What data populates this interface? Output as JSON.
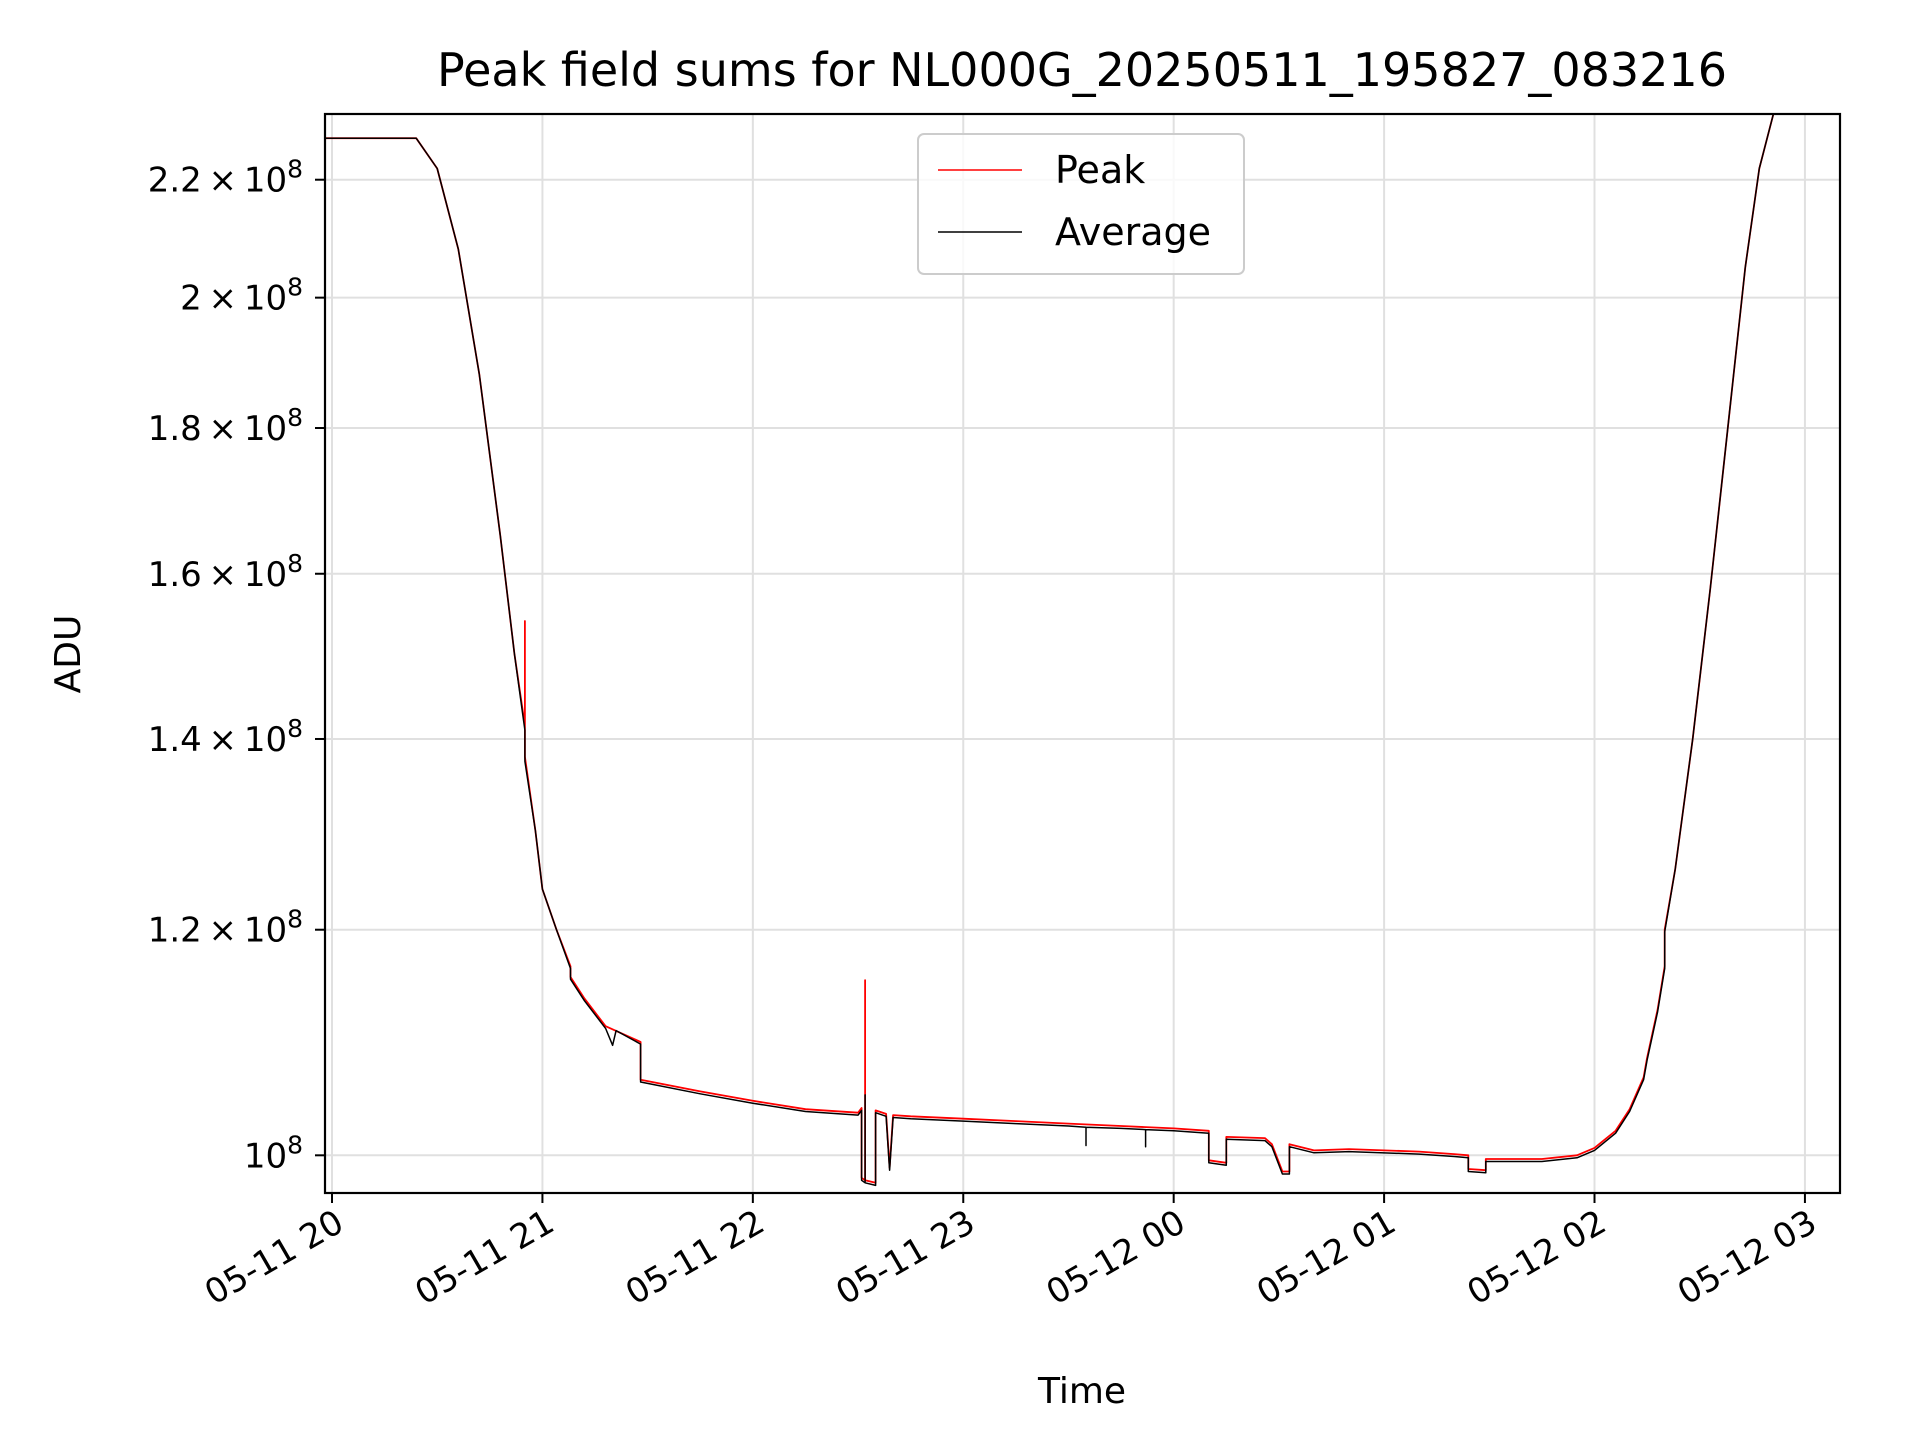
{
  "chart_data": {
    "type": "line",
    "title": "Peak field sums for NL000G_20250511_195827_083216",
    "xlabel": "Time",
    "ylabel": "ADU",
    "y_scale": "log",
    "xlim": [
      "2025-05-11 19:58",
      "2025-05-12 03:10"
    ],
    "ylim": [
      97000000,
      232000000
    ],
    "x_ticks": [
      "05-11 20",
      "05-11 21",
      "05-11 22",
      "05-11 23",
      "05-12 00",
      "05-12 01",
      "05-12 02",
      "05-12 03"
    ],
    "y_ticks": [
      {
        "value": 100000000,
        "mantissa": "",
        "exponent": "8",
        "label": "10^8"
      },
      {
        "value": 120000000,
        "mantissa": "1.2",
        "exponent": "8",
        "label": "1.2×10^8"
      },
      {
        "value": 140000000,
        "mantissa": "1.4",
        "exponent": "8",
        "label": "1.4×10^8"
      },
      {
        "value": 160000000,
        "mantissa": "1.6",
        "exponent": "8",
        "label": "1.6×10^8"
      },
      {
        "value": 180000000,
        "mantissa": "1.8",
        "exponent": "8",
        "label": "1.8×10^8"
      },
      {
        "value": 200000000,
        "mantissa": "2",
        "exponent": "8",
        "label": "2×10^8"
      },
      {
        "value": 220000000,
        "mantissa": "2.2",
        "exponent": "8",
        "label": "2.2×10^8"
      }
    ],
    "grid": true,
    "legend_position": "top-center",
    "series": [
      {
        "name": "Peak",
        "color": "#ff0000",
        "points": [
          [
            "2025-05-11 19:58",
            227500000
          ],
          [
            "2025-05-11 20:15",
            227500000
          ],
          [
            "2025-05-11 20:24",
            227500000
          ],
          [
            "2025-05-11 20:30",
            222000000
          ],
          [
            "2025-05-11 20:36",
            208000000
          ],
          [
            "2025-05-11 20:42",
            188000000
          ],
          [
            "2025-05-11 20:48",
            165000000
          ],
          [
            "2025-05-11 20:52",
            150000000
          ],
          [
            "2025-05-11 20:55",
            141500000
          ],
          [
            "2025-05-11 20:55",
            154000000
          ],
          [
            "2025-05-11 20:55",
            138000000
          ],
          [
            "2025-05-11 20:58",
            130000000
          ],
          [
            "2025-05-11 21:00",
            124000000
          ],
          [
            "2025-05-11 21:04",
            120000000
          ],
          [
            "2025-05-11 21:08",
            116500000
          ],
          [
            "2025-05-11 21:08",
            115500000
          ],
          [
            "2025-05-11 21:12",
            113500000
          ],
          [
            "2025-05-11 21:18",
            111000000
          ],
          [
            "2025-05-11 21:28",
            109600000
          ],
          [
            "2025-05-11 21:28",
            106300000
          ],
          [
            "2025-05-11 21:45",
            105300000
          ],
          [
            "2025-05-11 22:00",
            104500000
          ],
          [
            "2025-05-11 22:15",
            103800000
          ],
          [
            "2025-05-11 22:30",
            103500000
          ],
          [
            "2025-05-11 22:31",
            103900000
          ],
          [
            "2025-05-11 22:31",
            98200000
          ],
          [
            "2025-05-11 22:32",
            98000000
          ],
          [
            "2025-05-11 22:32",
            115200000
          ],
          [
            "2025-05-11 22:32",
            98000000
          ],
          [
            "2025-05-11 22:35",
            97800000
          ],
          [
            "2025-05-11 22:35",
            103700000
          ],
          [
            "2025-05-11 22:38",
            103400000
          ],
          [
            "2025-05-11 22:39",
            99000000
          ],
          [
            "2025-05-11 22:40",
            103300000
          ],
          [
            "2025-05-11 22:45",
            103200000
          ],
          [
            "2025-05-11 23:00",
            103000000
          ],
          [
            "2025-05-11 23:15",
            102800000
          ],
          [
            "2025-05-11 23:30",
            102600000
          ],
          [
            "2025-05-11 23:45",
            102400000
          ],
          [
            "2025-05-12 00:00",
            102200000
          ],
          [
            "2025-05-12 00:10",
            102000000
          ],
          [
            "2025-05-12 00:10",
            99600000
          ],
          [
            "2025-05-12 00:15",
            99400000
          ],
          [
            "2025-05-12 00:15",
            101500000
          ],
          [
            "2025-05-12 00:26",
            101400000
          ],
          [
            "2025-05-12 00:28",
            100900000
          ],
          [
            "2025-05-12 00:31",
            98700000
          ],
          [
            "2025-05-12 00:33",
            98700000
          ],
          [
            "2025-05-12 00:33",
            100900000
          ],
          [
            "2025-05-12 00:40",
            100400000
          ],
          [
            "2025-05-12 00:50",
            100500000
          ],
          [
            "2025-05-12 01:10",
            100300000
          ],
          [
            "2025-05-12 01:20",
            100100000
          ],
          [
            "2025-05-12 01:24",
            100000000
          ],
          [
            "2025-05-12 01:24",
            98900000
          ],
          [
            "2025-05-12 01:29",
            98800000
          ],
          [
            "2025-05-12 01:29",
            99700000
          ],
          [
            "2025-05-12 01:45",
            99700000
          ],
          [
            "2025-05-12 01:55",
            100000000
          ],
          [
            "2025-05-12 02:00",
            100600000
          ],
          [
            "2025-05-12 02:06",
            102000000
          ],
          [
            "2025-05-12 02:10",
            103800000
          ],
          [
            "2025-05-12 02:14",
            106500000
          ],
          [
            "2025-05-12 02:15",
            108200000
          ],
          [
            "2025-05-12 02:18",
            112500000
          ],
          [
            "2025-05-12 02:20",
            116500000
          ],
          [
            "2025-05-12 02:20",
            120000000
          ],
          [
            "2025-05-12 02:23",
            126000000
          ],
          [
            "2025-05-12 02:28",
            140000000
          ],
          [
            "2025-05-12 02:33",
            158000000
          ],
          [
            "2025-05-12 02:38",
            180000000
          ],
          [
            "2025-05-12 02:43",
            205000000
          ],
          [
            "2025-05-12 02:47",
            222000000
          ],
          [
            "2025-05-12 02:51",
            232000000
          ],
          [
            "2025-05-12 03:00",
            232000000
          ]
        ]
      },
      {
        "name": "Average",
        "color": "#000000",
        "points": [
          [
            "2025-05-11 19:58",
            227500000
          ],
          [
            "2025-05-11 20:15",
            227500000
          ],
          [
            "2025-05-11 20:24",
            227500000
          ],
          [
            "2025-05-11 20:30",
            222000000
          ],
          [
            "2025-05-11 20:36",
            208000000
          ],
          [
            "2025-05-11 20:42",
            188000000
          ],
          [
            "2025-05-11 20:48",
            165000000
          ],
          [
            "2025-05-11 20:52",
            150000000
          ],
          [
            "2025-05-11 20:55",
            141000000
          ],
          [
            "2025-05-11 20:55",
            137500000
          ],
          [
            "2025-05-11 20:58",
            130000000
          ],
          [
            "2025-05-11 21:00",
            124000000
          ],
          [
            "2025-05-11 21:04",
            120000000
          ],
          [
            "2025-05-11 21:08",
            116300000
          ],
          [
            "2025-05-11 21:08",
            115300000
          ],
          [
            "2025-05-11 21:12",
            113300000
          ],
          [
            "2025-05-11 21:18",
            110800000
          ],
          [
            "2025-05-11 21:20",
            109300000
          ],
          [
            "2025-05-11 21:21",
            110600000
          ],
          [
            "2025-05-11 21:28",
            109400000
          ],
          [
            "2025-05-11 21:28",
            106100000
          ],
          [
            "2025-05-11 21:45",
            105100000
          ],
          [
            "2025-05-11 22:00",
            104300000
          ],
          [
            "2025-05-11 22:15",
            103600000
          ],
          [
            "2025-05-11 22:30",
            103300000
          ],
          [
            "2025-05-11 22:31",
            103700000
          ],
          [
            "2025-05-11 22:31",
            98000000
          ],
          [
            "2025-05-11 22:32",
            97800000
          ],
          [
            "2025-05-11 22:32",
            105000000
          ],
          [
            "2025-05-11 22:32",
            97800000
          ],
          [
            "2025-05-11 22:35",
            97600000
          ],
          [
            "2025-05-11 22:35",
            103500000
          ],
          [
            "2025-05-11 22:38",
            103200000
          ],
          [
            "2025-05-11 22:39",
            98800000
          ],
          [
            "2025-05-11 22:40",
            103100000
          ],
          [
            "2025-05-11 22:45",
            103000000
          ],
          [
            "2025-05-11 23:00",
            102800000
          ],
          [
            "2025-05-11 23:15",
            102600000
          ],
          [
            "2025-05-11 23:30",
            102400000
          ],
          [
            "2025-05-11 23:35",
            102300000
          ],
          [
            "2025-05-11 23:35",
            100800000
          ],
          [
            "2025-05-11 23:35",
            102300000
          ],
          [
            "2025-05-11 23:45",
            102200000
          ],
          [
            "2025-05-11 23:52",
            102100000
          ],
          [
            "2025-05-11 23:52",
            100700000
          ],
          [
            "2025-05-11 23:52",
            102100000
          ],
          [
            "2025-05-12 00:00",
            102000000
          ],
          [
            "2025-05-12 00:10",
            101800000
          ],
          [
            "2025-05-12 00:10",
            99400000
          ],
          [
            "2025-05-12 00:15",
            99200000
          ],
          [
            "2025-05-12 00:15",
            101300000
          ],
          [
            "2025-05-12 00:26",
            101200000
          ],
          [
            "2025-05-12 00:28",
            100700000
          ],
          [
            "2025-05-12 00:31",
            98500000
          ],
          [
            "2025-05-12 00:33",
            98500000
          ],
          [
            "2025-05-12 00:33",
            100700000
          ],
          [
            "2025-05-12 00:40",
            100200000
          ],
          [
            "2025-05-12 00:50",
            100300000
          ],
          [
            "2025-05-12 01:10",
            100100000
          ],
          [
            "2025-05-12 01:20",
            99900000
          ],
          [
            "2025-05-12 01:24",
            99800000
          ],
          [
            "2025-05-12 01:24",
            98700000
          ],
          [
            "2025-05-12 01:29",
            98600000
          ],
          [
            "2025-05-12 01:29",
            99500000
          ],
          [
            "2025-05-12 01:45",
            99500000
          ],
          [
            "2025-05-12 01:55",
            99800000
          ],
          [
            "2025-05-12 02:00",
            100400000
          ],
          [
            "2025-05-12 02:06",
            101800000
          ],
          [
            "2025-05-12 02:10",
            103600000
          ],
          [
            "2025-05-12 02:14",
            106300000
          ],
          [
            "2025-05-12 02:15",
            108000000
          ],
          [
            "2025-05-12 02:18",
            112300000
          ],
          [
            "2025-05-12 02:20",
            116300000
          ],
          [
            "2025-05-12 02:20",
            119800000
          ],
          [
            "2025-05-12 02:23",
            126000000
          ],
          [
            "2025-05-12 02:28",
            140000000
          ],
          [
            "2025-05-12 02:33",
            158000000
          ],
          [
            "2025-05-12 02:38",
            180000000
          ],
          [
            "2025-05-12 02:43",
            205000000
          ],
          [
            "2025-05-12 02:47",
            222000000
          ],
          [
            "2025-05-12 02:51",
            232000000
          ],
          [
            "2025-05-12 03:00",
            232000000
          ]
        ]
      }
    ]
  }
}
